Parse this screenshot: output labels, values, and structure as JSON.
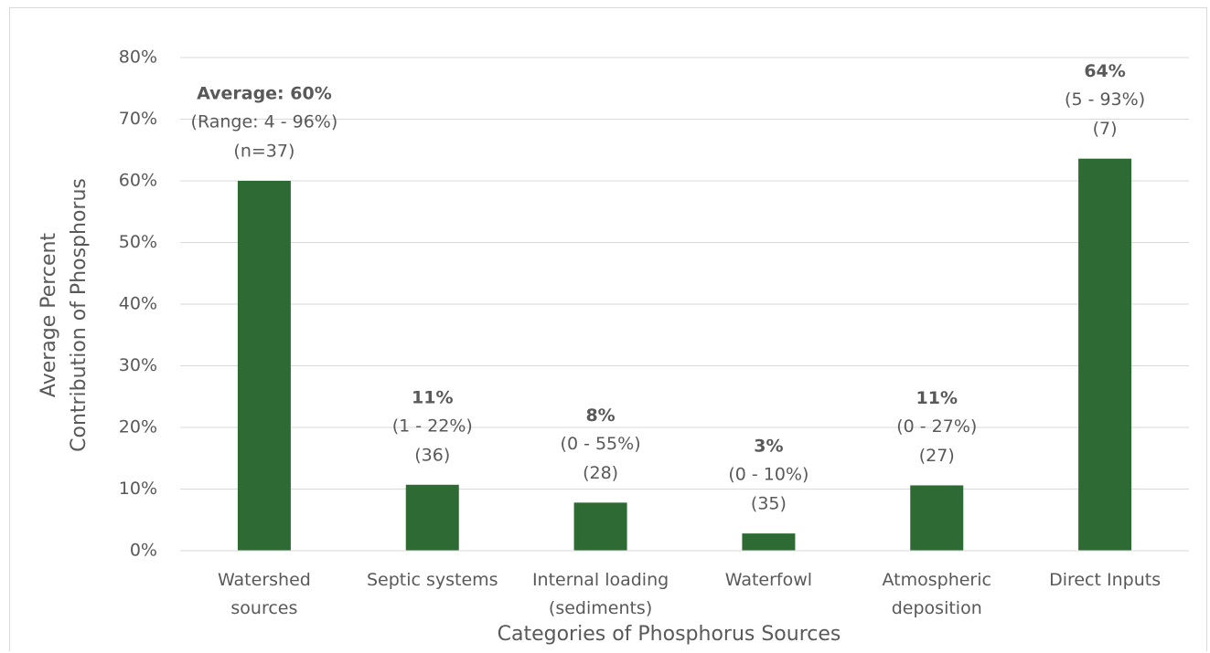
{
  "chart_data": {
    "type": "bar",
    "x_label": "Categories of Phosphorus Sources",
    "y_label": "Average Percent\nContribution of Phosphorus",
    "categories": [
      "Watershed\nsources",
      "Septic systems",
      "Internal loading\n(sediments)",
      "Waterfowl",
      "Atmospheric\ndeposition",
      "Direct Inputs"
    ],
    "values": [
      60,
      10.7,
      7.8,
      2.8,
      10.6,
      63.6
    ],
    "value_labels": [
      "Average: 60%",
      "11%",
      "8%",
      "3%",
      "11%",
      "64%"
    ],
    "range_labels": [
      "(Range: 4 - 96%)",
      "(1 - 22%)",
      "(0 - 55%)",
      "(0 - 10%)",
      "(0 - 27%)",
      "(5 - 93%)"
    ],
    "count_labels": [
      "(n=37)",
      "(36)",
      "(28)",
      "(35)",
      "(27)",
      "(7)"
    ],
    "color": "#2e6b34",
    "ylim": [
      0,
      80
    ],
    "yticks": [
      {
        "value": 0,
        "label": "0%"
      },
      {
        "value": 10,
        "label": "10%"
      },
      {
        "value": 20,
        "label": "20%"
      },
      {
        "value": 30,
        "label": "30%"
      },
      {
        "value": 40,
        "label": "40%"
      },
      {
        "value": 50,
        "label": "50%"
      },
      {
        "value": 60,
        "label": "60%"
      },
      {
        "value": 70,
        "label": "70%"
      },
      {
        "value": 80,
        "label": "80%"
      }
    ],
    "grid": true
  }
}
